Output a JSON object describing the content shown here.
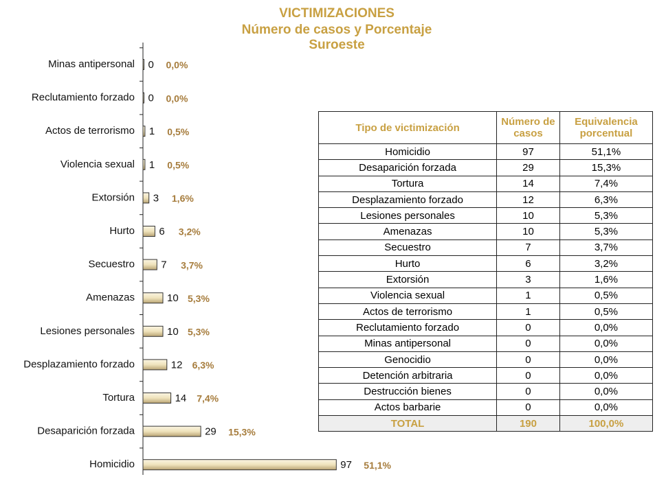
{
  "chart_data": {
    "type": "hbar",
    "title": "VICTIMIZACIONES",
    "subtitle": "Número de casos y Porcentaje",
    "region": "Suroeste",
    "categories": [
      "Minas antipersonal",
      "Reclutamiento forzado",
      "Actos de terrorismo",
      "Violencia sexual",
      "Extorsión",
      "Hurto",
      "Secuestro",
      "Amenazas",
      "Lesiones personales",
      "Desplazamiento forzado",
      "Tortura",
      "Desaparición forzada",
      "Homicidio"
    ],
    "values": [
      0,
      0,
      1,
      1,
      3,
      6,
      7,
      10,
      10,
      12,
      14,
      29,
      97
    ],
    "percent_labels": [
      "0,0%",
      "0,0%",
      "0,5%",
      "0,5%",
      "1,6%",
      "3,2%",
      "3,7%",
      "5,3%",
      "5,3%",
      "6,3%",
      "7,4%",
      "15,3%",
      "51,1%"
    ],
    "xlim": [
      0,
      100
    ],
    "color": "#e8dbb0"
  },
  "table": {
    "header": [
      "Tipo de victimización",
      "Número de casos",
      "Equivalencia porcentual"
    ],
    "rows": [
      [
        "Homicidio",
        "97",
        "51,1%"
      ],
      [
        "Desaparición forzada",
        "29",
        "15,3%"
      ],
      [
        "Tortura",
        "14",
        "7,4%"
      ],
      [
        "Desplazamiento forzado",
        "12",
        "6,3%"
      ],
      [
        "Lesiones personales",
        "10",
        "5,3%"
      ],
      [
        "Amenazas",
        "10",
        "5,3%"
      ],
      [
        "Secuestro",
        "7",
        "3,7%"
      ],
      [
        "Hurto",
        "6",
        "3,2%"
      ],
      [
        "Extorsión",
        "3",
        "1,6%"
      ],
      [
        "Violencia sexual",
        "1",
        "0,5%"
      ],
      [
        "Actos de terrorismo",
        "1",
        "0,5%"
      ],
      [
        "Reclutamiento forzado",
        "0",
        "0,0%"
      ],
      [
        "Minas antipersonal",
        "0",
        "0,0%"
      ],
      [
        "Genocidio",
        "0",
        "0,0%"
      ],
      [
        "Detención arbitraria",
        "0",
        "0,0%"
      ],
      [
        "Destrucción bienes",
        "0",
        "0,0%"
      ],
      [
        "Actos barbarie",
        "0",
        "0,0%"
      ]
    ],
    "total": [
      "TOTAL",
      "190",
      "100,0%"
    ]
  }
}
